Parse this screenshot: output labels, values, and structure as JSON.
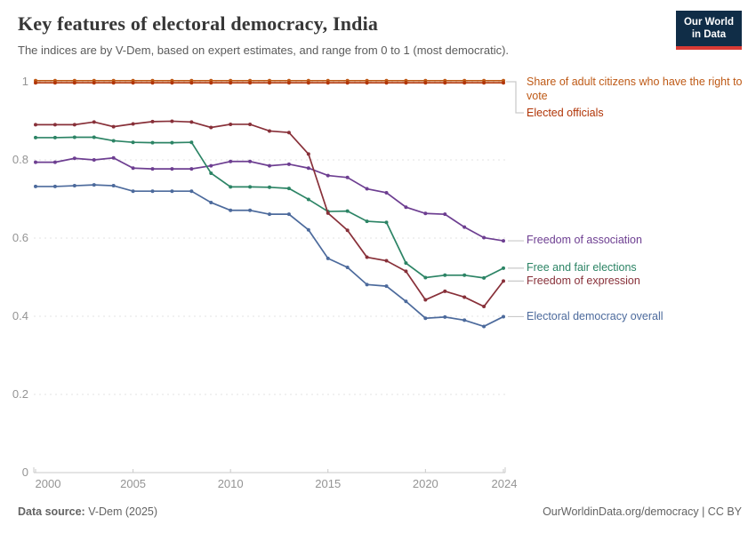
{
  "header": {
    "title": "Key features of electoral democracy, India",
    "subtitle": "The indices are by V-Dem, based on expert estimates, and range from 0 to 1 (most democratic).",
    "logo": {
      "line1": "Our World",
      "line2": "in Data",
      "bg_color": "#102d47",
      "stripe_color": "#d93a34"
    }
  },
  "footer": {
    "source_label": "Data source:",
    "source_value": " V-Dem (2025)",
    "right_text": "OurWorldinData.org/democracy | CC BY"
  },
  "chart_data": {
    "type": "line",
    "x": [
      2000,
      2001,
      2002,
      2003,
      2004,
      2005,
      2006,
      2007,
      2008,
      2009,
      2010,
      2011,
      2012,
      2013,
      2014,
      2015,
      2016,
      2017,
      2018,
      2019,
      2020,
      2021,
      2022,
      2023,
      2024
    ],
    "ylim": [
      0,
      1
    ],
    "grid": "horizontal dashed",
    "legend_position": "right of line ends, colored text labels",
    "yticks": [
      {
        "v": 0,
        "label": "0"
      },
      {
        "v": 0.2,
        "label": "0.2"
      },
      {
        "v": 0.4,
        "label": "0.4"
      },
      {
        "v": 0.6,
        "label": "0.6"
      },
      {
        "v": 0.8,
        "label": "0.8"
      },
      {
        "v": 1,
        "label": "1"
      }
    ],
    "xticks": [
      {
        "v": 2000,
        "label": "2000"
      },
      {
        "v": 2005,
        "label": "2005"
      },
      {
        "v": 2010,
        "label": "2010"
      },
      {
        "v": 2015,
        "label": "2015"
      },
      {
        "v": 2020,
        "label": "2020"
      },
      {
        "v": 2024,
        "label": "2024"
      }
    ],
    "series": [
      {
        "name": "Share of adult citizens who have the right to vote",
        "color": "#BE5915",
        "values": [
          1,
          1,
          1,
          1,
          1,
          1,
          1,
          1,
          1,
          1,
          1,
          1,
          1,
          1,
          1,
          1,
          1,
          1,
          1,
          1,
          1,
          1,
          1,
          1,
          1
        ]
      },
      {
        "name": "Elected officials",
        "color": "#B13507",
        "values": [
          1,
          1,
          1,
          1,
          1,
          1,
          1,
          1,
          1,
          1,
          1,
          1,
          1,
          1,
          1,
          1,
          1,
          1,
          1,
          1,
          1,
          1,
          1,
          1,
          1
        ]
      },
      {
        "name": "Freedom of association",
        "color": "#6D3E91",
        "values": [
          0.794,
          0.794,
          0.804,
          0.8,
          0.805,
          0.779,
          0.777,
          0.777,
          0.777,
          0.785,
          0.796,
          0.796,
          0.785,
          0.789,
          0.779,
          0.76,
          0.755,
          0.726,
          0.716,
          0.679,
          0.663,
          0.661,
          0.628,
          0.601,
          0.593
        ]
      },
      {
        "name": "Free and fair elections",
        "color": "#2C8465",
        "values": [
          0.857,
          0.857,
          0.858,
          0.858,
          0.849,
          0.845,
          0.844,
          0.844,
          0.845,
          0.766,
          0.731,
          0.731,
          0.73,
          0.727,
          0.699,
          0.668,
          0.669,
          0.643,
          0.64,
          0.536,
          0.499,
          0.505,
          0.505,
          0.498,
          0.523
        ]
      },
      {
        "name": "Freedom of expression",
        "color": "#883039",
        "values": [
          0.89,
          0.89,
          0.89,
          0.897,
          0.885,
          0.892,
          0.898,
          0.899,
          0.897,
          0.883,
          0.891,
          0.891,
          0.874,
          0.87,
          0.815,
          0.664,
          0.62,
          0.551,
          0.542,
          0.515,
          0.442,
          0.464,
          0.449,
          0.425,
          0.49
        ]
      },
      {
        "name": "Electoral democracy overall",
        "color": "#4C6A9C",
        "values": [
          0.732,
          0.732,
          0.734,
          0.736,
          0.734,
          0.72,
          0.72,
          0.72,
          0.72,
          0.691,
          0.671,
          0.671,
          0.661,
          0.661,
          0.621,
          0.548,
          0.525,
          0.481,
          0.477,
          0.438,
          0.395,
          0.398,
          0.39,
          0.374,
          0.399
        ]
      }
    ]
  }
}
